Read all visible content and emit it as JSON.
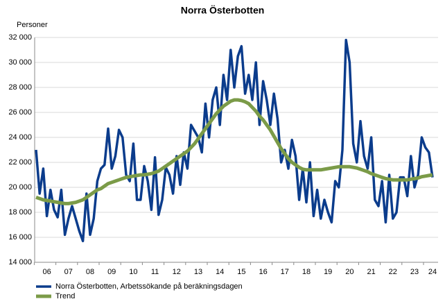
{
  "chart_data": {
    "type": "line",
    "title": "Norra Österbotten",
    "y_label": "Personer",
    "categories": [
      null,
      null,
      null,
      "06",
      null,
      null,
      null,
      null,
      null,
      "07",
      null,
      null,
      null,
      null,
      null,
      "08",
      null,
      null,
      null,
      null,
      null,
      "09",
      null,
      null,
      null,
      null,
      null,
      "10",
      null,
      null,
      null,
      null,
      null,
      "11",
      null,
      null,
      null,
      null,
      null,
      "12",
      null,
      null,
      null,
      null,
      null,
      "13",
      null,
      null,
      null,
      null,
      null,
      "14",
      null,
      null,
      null,
      null,
      null,
      "15",
      null,
      null,
      null,
      null,
      null,
      "16",
      null,
      null,
      null,
      null,
      null,
      "17",
      null,
      null,
      null,
      null,
      null,
      "18",
      null,
      null,
      null,
      null,
      null,
      "19",
      null,
      null,
      null,
      null,
      null,
      "20",
      null,
      null,
      null,
      null,
      null,
      "21",
      null,
      null,
      null,
      null,
      null,
      "22",
      null,
      null,
      null,
      null,
      null,
      "23",
      null,
      null,
      null,
      null,
      "24"
    ],
    "series": [
      {
        "name": "Norra Österbotten, Arbetssökande på beräkningsdagen",
        "color": "#0b3c8c",
        "width": 3.5,
        "values": [
          23000,
          19500,
          21500,
          17700,
          19800,
          18200,
          17600,
          19800,
          16200,
          17500,
          18500,
          17500,
          16500,
          15700,
          19500,
          16200,
          17500,
          20500,
          21500,
          21800,
          24700,
          21500,
          22500,
          24600,
          24000,
          21000,
          20500,
          23500,
          19000,
          19000,
          21700,
          20500,
          18200,
          22400,
          17800,
          19000,
          21600,
          21000,
          19500,
          22500,
          20200,
          22800,
          21500,
          25000,
          24500,
          24000,
          22800,
          26700,
          24000,
          27000,
          28000,
          25000,
          29000,
          27000,
          31000,
          28000,
          30500,
          31300,
          27500,
          29000,
          27000,
          30000,
          25000,
          28500,
          27000,
          25000,
          27500,
          25500,
          22000,
          23000,
          21500,
          23800,
          22500,
          19000,
          21500,
          18800,
          22000,
          17700,
          19800,
          17500,
          19000,
          18000,
          17200,
          20500,
          20000,
          23000,
          31800,
          30000,
          23500,
          22000,
          25300,
          22500,
          21500,
          24000,
          19000,
          18500,
          20500,
          17200,
          21000,
          17500,
          18000,
          20800,
          20800,
          19300,
          22500,
          20000,
          21000,
          24000,
          23200,
          22800,
          20800
        ]
      },
      {
        "name": "Trend",
        "color": "#7b9b48",
        "width": 5,
        "values": [
          19200,
          19100,
          19000,
          18950,
          18900,
          18850,
          18800,
          18750,
          18700,
          18700,
          18750,
          18800,
          18900,
          19000,
          19200,
          19400,
          19600,
          19800,
          19900,
          20100,
          20300,
          20400,
          20500,
          20600,
          20700,
          20800,
          20850,
          20900,
          20950,
          21000,
          21000,
          21050,
          21100,
          21200,
          21300,
          21500,
          21700,
          21900,
          22100,
          22300,
          22500,
          22700,
          22900,
          23200,
          23500,
          23900,
          24300,
          24700,
          25100,
          25500,
          25900,
          26200,
          26500,
          26700,
          26900,
          27000,
          27000,
          26950,
          26850,
          26700,
          26400,
          26100,
          25700,
          25400,
          25000,
          24600,
          24100,
          23600,
          23100,
          22700,
          22300,
          22000,
          21800,
          21600,
          21450,
          21400,
          21400,
          21400,
          21400,
          21400,
          21450,
          21500,
          21550,
          21600,
          21650,
          21650,
          21650,
          21650,
          21600,
          21550,
          21450,
          21350,
          21250,
          21100,
          21000,
          20900,
          20800,
          20700,
          20650,
          20600,
          20600,
          20600,
          20600,
          20600,
          20650,
          20700,
          20750,
          20850,
          20900,
          20950,
          21000
        ]
      }
    ],
    "ylim": [
      14000,
      32000
    ],
    "yticks": [
      {
        "value": 14000,
        "label": "14 000"
      },
      {
        "value": 16000,
        "label": "16 000"
      },
      {
        "value": 18000,
        "label": "18 000"
      },
      {
        "value": 20000,
        "label": "20 000"
      },
      {
        "value": 22000,
        "label": "22 000"
      },
      {
        "value": 24000,
        "label": "24 000"
      },
      {
        "value": 26000,
        "label": "26 000"
      },
      {
        "value": 28000,
        "label": "28 000"
      },
      {
        "value": 30000,
        "label": "30 000"
      },
      {
        "value": 32000,
        "label": "32 000"
      }
    ],
    "grid": true,
    "legend": "bottom-left"
  }
}
